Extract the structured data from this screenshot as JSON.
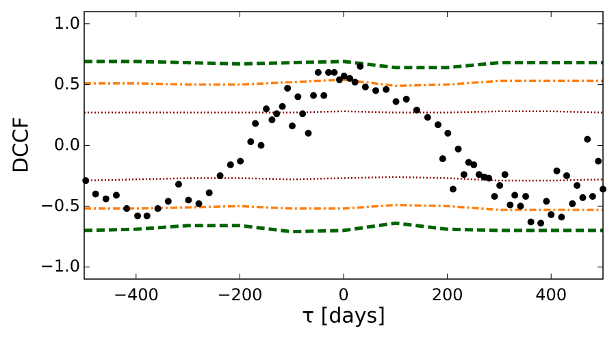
{
  "chart_data": {
    "type": "scatter",
    "xlabel": "τ [days]",
    "ylabel": "DCCF",
    "xlim": [
      -500,
      500
    ],
    "ylim": [
      -1.1,
      1.1
    ],
    "xticks": [
      {
        "value": -400,
        "label": "−400"
      },
      {
        "value": -200,
        "label": "−200"
      },
      0,
      200,
      400
    ],
    "yticks": [
      {
        "value": 1.0,
        "label": "1.0"
      },
      {
        "value": 0.5,
        "label": "0.5"
      },
      {
        "value": 0.0,
        "label": "0.0"
      },
      {
        "value": -0.5,
        "label": "−0.5"
      },
      {
        "value": -1.0,
        "label": "−1.0"
      }
    ],
    "color": "#000000",
    "x": [
      -497,
      -478,
      -458,
      -438,
      -418,
      -397,
      -379,
      -358,
      -338,
      -318,
      -299,
      -279,
      -259,
      -238,
      -218,
      -199,
      -179,
      -170,
      -159,
      -149,
      -138,
      -129,
      -118,
      -108,
      -99,
      -88,
      -79,
      -68,
      -58,
      -49,
      -38,
      -29,
      -18,
      -8,
      1,
      12,
      22,
      32,
      42,
      62,
      82,
      101,
      121,
      141,
      162,
      182,
      191,
      201,
      211,
      221,
      232,
      241,
      251,
      261,
      271,
      280,
      291,
      301,
      311,
      321,
      330,
      341,
      351,
      361,
      380,
      391,
      400,
      411,
      420,
      430,
      441,
      450,
      461,
      470,
      480,
      491,
      500
    ],
    "values": [
      -0.29,
      -0.4,
      -0.44,
      -0.41,
      -0.52,
      -0.58,
      -0.58,
      -0.52,
      -0.46,
      -0.32,
      -0.45,
      -0.48,
      -0.39,
      -0.25,
      -0.16,
      -0.13,
      0.03,
      0.18,
      0.0,
      0.3,
      0.21,
      0.26,
      0.32,
      0.47,
      0.16,
      0.4,
      0.26,
      0.1,
      0.41,
      0.6,
      0.41,
      0.6,
      0.6,
      0.54,
      0.57,
      0.55,
      0.52,
      0.65,
      0.48,
      0.45,
      0.46,
      0.36,
      0.38,
      0.29,
      0.23,
      0.17,
      -0.11,
      0.1,
      -0.36,
      -0.03,
      -0.24,
      -0.14,
      -0.16,
      -0.24,
      -0.26,
      -0.27,
      -0.42,
      -0.33,
      -0.24,
      -0.49,
      -0.41,
      -0.5,
      -0.42,
      -0.63,
      -0.64,
      -0.46,
      -0.57,
      -0.21,
      -0.59,
      -0.25,
      -0.48,
      -0.33,
      -0.43,
      0.05,
      -0.42,
      -0.13,
      -0.36
    ],
    "line_x": [
      -500,
      -400,
      -300,
      -200,
      -100,
      0,
      100,
      200,
      300,
      400,
      500
    ],
    "lines": [
      {
        "color": "#006400",
        "linestyle": "dashed",
        "values": [
          0.69,
          0.69,
          0.68,
          0.67,
          0.68,
          0.69,
          0.64,
          0.64,
          0.68,
          0.68,
          0.68
        ]
      },
      {
        "color": "#ff7f0e",
        "linestyle": "dashdot",
        "values": [
          0.51,
          0.51,
          0.5,
          0.5,
          0.52,
          0.54,
          0.49,
          0.5,
          0.53,
          0.53,
          0.53
        ]
      },
      {
        "color": "#8b0000",
        "linestyle": "dotted",
        "values": [
          0.27,
          0.27,
          0.27,
          0.27,
          0.27,
          0.28,
          0.27,
          0.27,
          0.28,
          0.28,
          0.27
        ]
      },
      {
        "color": "#8b0000",
        "linestyle": "dotted",
        "values": [
          -0.29,
          -0.28,
          -0.27,
          -0.27,
          -0.28,
          -0.27,
          -0.26,
          -0.27,
          -0.29,
          -0.29,
          -0.28
        ]
      },
      {
        "color": "#ff7f0e",
        "linestyle": "dashdot",
        "values": [
          -0.52,
          -0.52,
          -0.51,
          -0.5,
          -0.52,
          -0.52,
          -0.49,
          -0.5,
          -0.53,
          -0.53,
          -0.53
        ]
      },
      {
        "color": "#006400",
        "linestyle": "dashed",
        "values": [
          -0.7,
          -0.69,
          -0.66,
          -0.66,
          -0.71,
          -0.7,
          -0.64,
          -0.69,
          -0.7,
          -0.7,
          -0.7
        ]
      }
    ]
  }
}
